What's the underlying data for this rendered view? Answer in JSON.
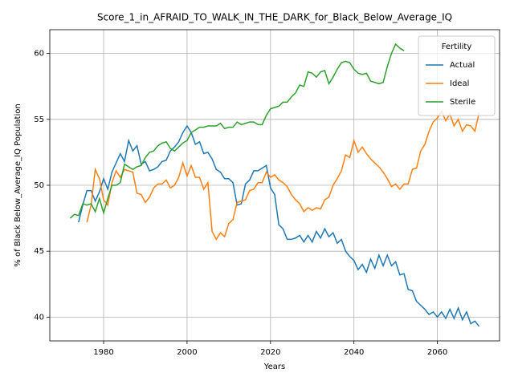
{
  "chart_data": {
    "type": "line",
    "title": "Score_1_in_AFRAID_TO_WALK_IN_THE_DARK_for_Black_Below_Average_IQ",
    "xlabel": "Years",
    "ylabel": "% of Black Below_Average_IQ Population",
    "xlim": [
      1967.1,
      2074.9
    ],
    "ylim": [
      38.2,
      61.8
    ],
    "xticks": [
      1980,
      2000,
      2020,
      2040,
      2060
    ],
    "yticks": [
      40,
      45,
      50,
      55,
      60
    ],
    "grid": true,
    "legend_title": "Fertility",
    "legend_loc": "upper right",
    "series": [
      {
        "name": "Actual",
        "color": "#1f77b4",
        "x": [
          1974,
          1975,
          1976,
          1977,
          1978,
          1979,
          1980,
          1981,
          1982,
          1983,
          1984,
          1985,
          1986,
          1987,
          1988,
          1989,
          1990,
          1991,
          1992,
          1993,
          1994,
          1995,
          1996,
          1997,
          1998,
          1999,
          2000,
          2001,
          2002,
          2003,
          2004,
          2005,
          2006,
          2007,
          2008,
          2009,
          2010,
          2011,
          2012,
          2013,
          2014,
          2015,
          2016,
          2017,
          2018,
          2019,
          2020,
          2021,
          2022,
          2023,
          2024,
          2025,
          2026,
          2027,
          2028,
          2029,
          2030,
          2031,
          2032,
          2033,
          2034,
          2035,
          2036,
          2037,
          2038,
          2039,
          2040,
          2041,
          2042,
          2043,
          2044,
          2045,
          2046,
          2047,
          2048,
          2049,
          2050,
          2051,
          2052,
          2053,
          2054,
          2055,
          2056,
          2057,
          2058,
          2059,
          2060,
          2061,
          2062,
          2063,
          2064,
          2065,
          2066,
          2067,
          2068,
          2069,
          2070
        ],
        "values": [
          47.2,
          48.5,
          49.6,
          49.6,
          48.8,
          49.5,
          50.5,
          49.7,
          51.0,
          51.7,
          52.4,
          51.8,
          53.4,
          52.6,
          53.0,
          51.6,
          51.8,
          51.1,
          51.2,
          51.4,
          51.8,
          51.9,
          52.6,
          52.9,
          53.3,
          54.0,
          54.5,
          54.0,
          53.1,
          53.3,
          52.4,
          52.5,
          52.0,
          51.2,
          51.0,
          50.5,
          50.5,
          50.2,
          48.5,
          48.6,
          50.1,
          50.4,
          51.1,
          51.1,
          51.3,
          51.5,
          49.8,
          49.3,
          47.0,
          46.7,
          45.9,
          45.9,
          46.0,
          46.2,
          45.7,
          46.2,
          45.7,
          46.5,
          46.0,
          46.7,
          46.1,
          46.4,
          45.6,
          45.9,
          45.0,
          44.6,
          44.3,
          43.6,
          44.0,
          43.4,
          44.4,
          43.7,
          44.7,
          43.9,
          44.7,
          43.9,
          44.2,
          43.2,
          43.3,
          42.1,
          42.0,
          41.2,
          40.9,
          40.6,
          40.2,
          40.4,
          40.0,
          40.4,
          39.9,
          40.6,
          39.9,
          40.7,
          39.8,
          40.4,
          39.5,
          39.7,
          39.3
        ]
      },
      {
        "name": "Ideal",
        "color": "#ff7f0e",
        "x": [
          1976,
          1977,
          1978,
          1979,
          1980,
          1981,
          1982,
          1983,
          1984,
          1985,
          1986,
          1987,
          1988,
          1989,
          1990,
          1991,
          1992,
          1993,
          1994,
          1995,
          1996,
          1997,
          1998,
          1999,
          2000,
          2001,
          2002,
          2003,
          2004,
          2005,
          2006,
          2007,
          2008,
          2009,
          2010,
          2011,
          2012,
          2013,
          2014,
          2015,
          2016,
          2017,
          2018,
          2019,
          2020,
          2021,
          2022,
          2023,
          2024,
          2025,
          2026,
          2027,
          2028,
          2029,
          2030,
          2031,
          2032,
          2033,
          2034,
          2035,
          2036,
          2037,
          2038,
          2039,
          2040,
          2041,
          2042,
          2043,
          2044,
          2045,
          2046,
          2047,
          2048,
          2049,
          2050,
          2051,
          2052,
          2053,
          2054,
          2055,
          2056,
          2057,
          2058,
          2059,
          2060,
          2061,
          2062,
          2063,
          2064,
          2065,
          2066,
          2067,
          2068,
          2069,
          2070
        ],
        "values": [
          47.2,
          48.5,
          51.2,
          50.5,
          48.9,
          48.5,
          50.2,
          51.1,
          50.6,
          51.2,
          51.1,
          51.0,
          49.4,
          49.3,
          48.7,
          49.1,
          49.8,
          50.1,
          50.1,
          50.4,
          49.8,
          50.0,
          50.6,
          51.7,
          50.7,
          51.5,
          50.6,
          50.6,
          49.7,
          50.2,
          46.5,
          45.9,
          46.4,
          46.1,
          47.1,
          47.4,
          48.7,
          48.8,
          48.9,
          49.6,
          49.7,
          50.2,
          50.2,
          51.0,
          50.6,
          50.8,
          50.4,
          50.2,
          49.9,
          49.3,
          48.9,
          48.6,
          48.0,
          48.3,
          48.1,
          48.3,
          48.2,
          48.9,
          49.1,
          50.0,
          50.5,
          51.1,
          52.3,
          52.1,
          53.4,
          52.5,
          52.9,
          52.4,
          52.0,
          51.7,
          51.4,
          51.0,
          50.5,
          49.9,
          50.1,
          49.7,
          50.1,
          50.1,
          51.2,
          51.3,
          52.6,
          53.1,
          54.1,
          54.8,
          55.1,
          55.6,
          54.9,
          55.4,
          54.5,
          55.0,
          54.1,
          54.6,
          54.5,
          54.1,
          55.5
        ]
      },
      {
        "name": "Sterile",
        "color": "#2ca02c",
        "x": [
          1972,
          1973,
          1974,
          1975,
          1976,
          1977,
          1978,
          1979,
          1980,
          1981,
          1982,
          1983,
          1984,
          1985,
          1986,
          1987,
          1988,
          1989,
          1990,
          1991,
          1992,
          1993,
          1994,
          1995,
          1996,
          1997,
          1998,
          1999,
          2000,
          2001,
          2002,
          2003,
          2004,
          2005,
          2006,
          2007,
          2008,
          2009,
          2010,
          2011,
          2012,
          2013,
          2014,
          2015,
          2016,
          2017,
          2018,
          2019,
          2020,
          2021,
          2022,
          2023,
          2024,
          2025,
          2026,
          2027,
          2028,
          2029,
          2030,
          2031,
          2032,
          2033,
          2034,
          2035,
          2036,
          2037,
          2038,
          2039,
          2040,
          2041,
          2042,
          2043,
          2044,
          2045,
          2046,
          2047,
          2048,
          2049,
          2050,
          2051,
          2052
        ],
        "values": [
          47.5,
          47.8,
          47.7,
          48.6,
          48.5,
          48.6,
          48.0,
          49.0,
          47.9,
          49.0,
          50.0,
          50.0,
          50.2,
          51.6,
          51.4,
          51.2,
          51.4,
          51.5,
          52.1,
          52.5,
          52.6,
          53.0,
          53.2,
          53.3,
          52.8,
          52.6,
          52.9,
          53.2,
          53.4,
          54.0,
          54.2,
          54.4,
          54.4,
          54.5,
          54.5,
          54.5,
          54.7,
          54.3,
          54.4,
          54.4,
          54.8,
          54.6,
          54.7,
          54.8,
          54.8,
          54.6,
          54.6,
          55.3,
          55.8,
          55.9,
          56.0,
          56.3,
          56.3,
          56.7,
          57.0,
          57.6,
          57.5,
          58.6,
          58.5,
          58.2,
          58.6,
          58.7,
          57.7,
          58.2,
          58.8,
          59.3,
          59.4,
          59.3,
          58.8,
          58.5,
          58.4,
          58.5,
          57.9,
          57.8,
          57.7,
          57.8,
          59.0,
          60.0,
          60.7,
          60.4,
          60.2
        ]
      }
    ]
  }
}
